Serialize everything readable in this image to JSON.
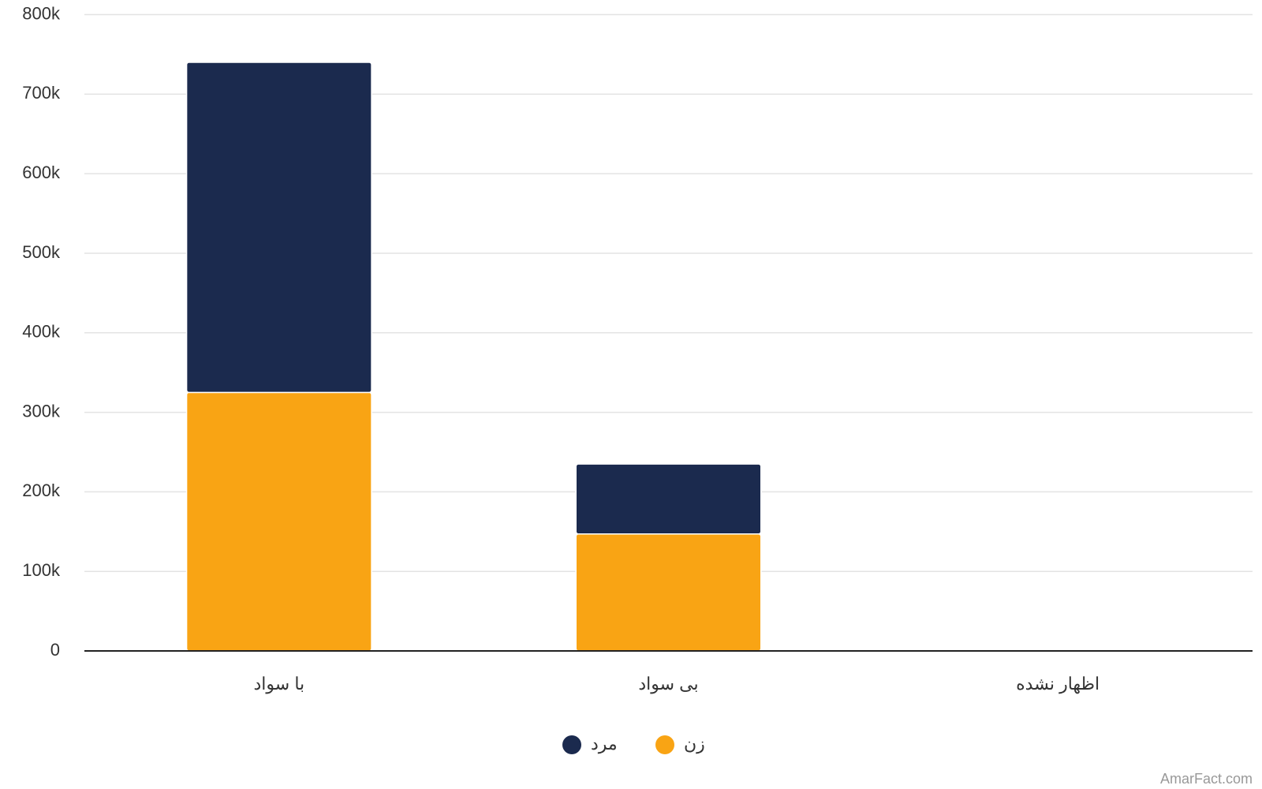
{
  "chart_data": {
    "type": "stacked_bar",
    "categories": [
      "با سواد",
      "بی سواد",
      "اظهار نشده"
    ],
    "series": [
      {
        "name": "زن",
        "color": "#f9a414",
        "values": [
          325000,
          147000,
          0
        ]
      },
      {
        "name": "مرد",
        "color": "#1b2a4e",
        "values": [
          415000,
          88000,
          0
        ]
      }
    ],
    "ylim": [
      0,
      800000
    ],
    "yticks": [
      0,
      {
        "value": 100000,
        "label": "100k"
      },
      {
        "value": 200000,
        "label": "200k"
      },
      {
        "value": 300000,
        "label": "300k"
      },
      {
        "value": 400000,
        "label": "400k"
      },
      {
        "value": 500000,
        "label": "500k"
      },
      {
        "value": 600000,
        "label": "600k"
      },
      {
        "value": 700000,
        "label": "700k"
      },
      {
        "value": 800000,
        "label": "800k"
      }
    ],
    "grid": true,
    "source": "AmarFact.com"
  }
}
